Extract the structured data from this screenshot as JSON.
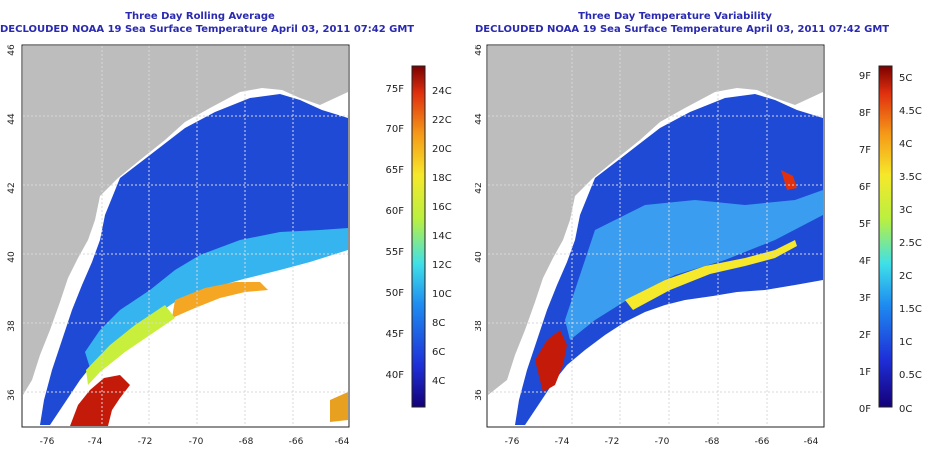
{
  "colors": {
    "land": "#bdbdbd",
    "water_cold": "#1f4ad6",
    "title": "#2a2ab0",
    "grid": "#d8d8d8"
  },
  "left": {
    "title1": "Three Day Rolling Average",
    "title2": "DECLOUDED NOAA 19 Sea Surface Temperature April 03, 2011 07:42 GMT",
    "colorbar_f": [
      "40F",
      "45F",
      "50F",
      "55F",
      "60F",
      "65F",
      "70F",
      "75F"
    ],
    "colorbar_c": [
      "4C",
      "6C",
      "8C",
      "10C",
      "12C",
      "14C",
      "16C",
      "18C",
      "20C",
      "22C",
      "24C"
    ]
  },
  "right": {
    "title1": "Three Day Temperature Variability",
    "title2": "DECLOUDED NOAA 19 Sea Surface Temperature April 03, 2011 07:42 GMT",
    "colorbar_f": [
      "0F",
      "1F",
      "2F",
      "3F",
      "4F",
      "5F",
      "6F",
      "7F",
      "8F",
      "9F"
    ],
    "colorbar_c": [
      "0C",
      "0.5C",
      "1C",
      "1.5C",
      "2C",
      "2.5C",
      "3C",
      "3.5C",
      "4C",
      "4.5C",
      "5C"
    ]
  },
  "axes": {
    "x_ticks": [
      "-76",
      "-74",
      "-72",
      "-70",
      "-68",
      "-66",
      "-64"
    ],
    "y_ticks": [
      "36",
      "38",
      "40",
      "42",
      "44",
      "46"
    ]
  }
}
